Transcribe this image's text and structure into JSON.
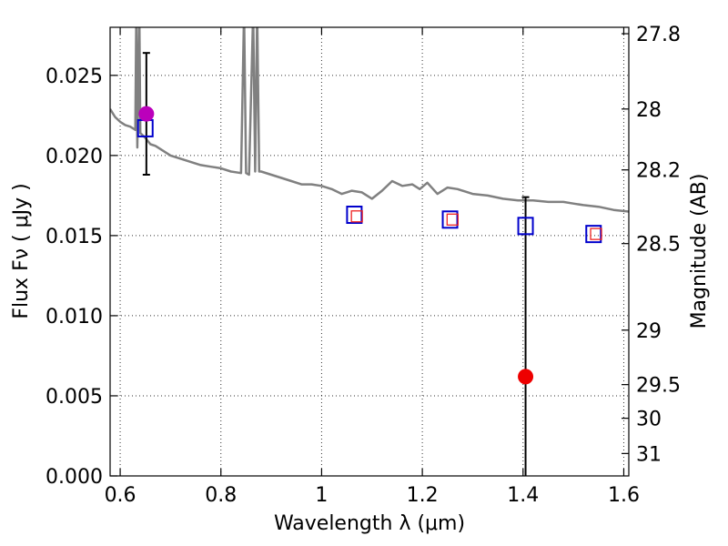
{
  "chart_data": {
    "type": "scatter",
    "title": "",
    "xlabel": "Wavelength  λ (μm)",
    "ylabel_left": "Flux  Fν  ( μJy )",
    "ylabel_right": "Magnitude (AB)",
    "xlim": [
      0.58,
      1.61
    ],
    "ylim": [
      0.0,
      0.028
    ],
    "grid": true,
    "x_ticks": [
      0.6,
      0.8,
      1.0,
      1.2,
      1.4,
      1.6
    ],
    "x_tick_labels": [
      "0.6",
      "0.8",
      "1",
      "1.2",
      "1.4",
      "1.6"
    ],
    "y_ticks": [
      0.0,
      0.005,
      0.01,
      0.015,
      0.02,
      0.025
    ],
    "y_tick_labels": [
      "0.000",
      "0.005",
      "0.010",
      "0.015",
      "0.020",
      "0.025"
    ],
    "right_ticks": [
      {
        "label": "27.8",
        "flux": 0.0276
      },
      {
        "label": "28",
        "flux": 0.0229
      },
      {
        "label": "28.2",
        "flux": 0.0191
      },
      {
        "label": "28.5",
        "flux": 0.0145
      },
      {
        "label": "29",
        "flux": 0.0091
      },
      {
        "label": "29.5",
        "flux": 0.0057
      },
      {
        "label": "30",
        "flux": 0.0036
      },
      {
        "label": "31",
        "flux": 0.0014
      }
    ],
    "colors": {
      "spectrum": "#808080",
      "model_box": "#0000cc",
      "small_box": "#ee2222",
      "magenta_point": "#bb00bb",
      "red_point": "#ee0000",
      "errorbar": "#000000",
      "grid": "#000000"
    },
    "series": [
      {
        "kind": "spectrum_line",
        "points": [
          [
            0.58,
            0.0229
          ],
          [
            0.59,
            0.0224
          ],
          [
            0.6,
            0.0221
          ],
          [
            0.61,
            0.0219
          ],
          [
            0.62,
            0.0218
          ],
          [
            0.63,
            0.0216
          ],
          [
            0.632,
            0.029
          ],
          [
            0.634,
            0.0205
          ],
          [
            0.638,
            0.029
          ],
          [
            0.64,
            0.0214
          ],
          [
            0.65,
            0.0211
          ],
          [
            0.66,
            0.0207
          ],
          [
            0.67,
            0.0206
          ],
          [
            0.68,
            0.0204
          ],
          [
            0.7,
            0.02
          ],
          [
            0.72,
            0.0198
          ],
          [
            0.74,
            0.0196
          ],
          [
            0.76,
            0.0194
          ],
          [
            0.78,
            0.0193
          ],
          [
            0.8,
            0.0192
          ],
          [
            0.82,
            0.019
          ],
          [
            0.84,
            0.0189
          ],
          [
            0.846,
            0.029
          ],
          [
            0.85,
            0.0189
          ],
          [
            0.856,
            0.0188
          ],
          [
            0.864,
            0.029
          ],
          [
            0.868,
            0.019
          ],
          [
            0.872,
            0.029
          ],
          [
            0.876,
            0.019
          ],
          [
            0.88,
            0.019
          ],
          [
            0.9,
            0.0188
          ],
          [
            0.92,
            0.0186
          ],
          [
            0.94,
            0.0184
          ],
          [
            0.96,
            0.0182
          ],
          [
            0.98,
            0.0182
          ],
          [
            1.0,
            0.0181
          ],
          [
            1.02,
            0.0179
          ],
          [
            1.04,
            0.0176
          ],
          [
            1.06,
            0.0178
          ],
          [
            1.08,
            0.0177
          ],
          [
            1.1,
            0.0173
          ],
          [
            1.12,
            0.0178
          ],
          [
            1.14,
            0.0184
          ],
          [
            1.16,
            0.0181
          ],
          [
            1.18,
            0.0182
          ],
          [
            1.195,
            0.0179
          ],
          [
            1.21,
            0.0183
          ],
          [
            1.23,
            0.0176
          ],
          [
            1.25,
            0.018
          ],
          [
            1.27,
            0.0179
          ],
          [
            1.3,
            0.0176
          ],
          [
            1.33,
            0.0175
          ],
          [
            1.36,
            0.0173
          ],
          [
            1.39,
            0.0172
          ],
          [
            1.42,
            0.0172
          ],
          [
            1.45,
            0.0171
          ],
          [
            1.48,
            0.0171
          ],
          [
            1.5,
            0.017
          ],
          [
            1.52,
            0.0169
          ],
          [
            1.55,
            0.0168
          ],
          [
            1.58,
            0.0166
          ],
          [
            1.61,
            0.0165
          ]
        ]
      },
      {
        "kind": "model_boxes",
        "points": [
          [
            0.65,
            0.0217
          ],
          [
            1.065,
            0.0163
          ],
          [
            1.255,
            0.016
          ],
          [
            1.405,
            0.0156
          ],
          [
            1.54,
            0.0151
          ]
        ]
      },
      {
        "kind": "small_boxes",
        "points": [
          [
            1.07,
            0.0162
          ],
          [
            1.26,
            0.016
          ],
          [
            1.545,
            0.0151
          ]
        ]
      },
      {
        "kind": "observed_points",
        "points": [
          {
            "x": 0.652,
            "y": 0.0226,
            "yerr_low": 0.0188,
            "yerr_high": 0.0264,
            "color": "magenta"
          },
          {
            "x": 1.405,
            "y": 0.0062,
            "yerr_low": 0.0,
            "yerr_high": 0.0174,
            "color": "red"
          }
        ]
      }
    ]
  }
}
